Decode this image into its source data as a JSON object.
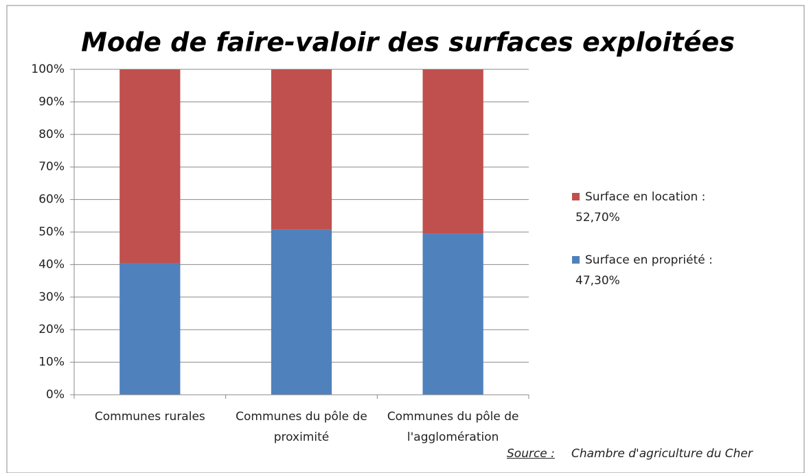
{
  "chart_data": {
    "type": "stacked_bar",
    "title": "Mode de faire-valoir des surfaces exploitées",
    "categories": [
      "Communes rurales",
      "Communes du pôle de proximité",
      "Communes du pôle de l'agglomération"
    ],
    "series": [
      {
        "name": "Surface en propriété : 47,30%",
        "color": "#4f81bd",
        "values": [
          40.5,
          50.7,
          49.5
        ]
      },
      {
        "name": "Surface en location : 52,70%",
        "color": "#c0504d",
        "values": [
          59.5,
          49.3,
          50.5
        ]
      }
    ],
    "ylim": [
      0,
      100
    ],
    "yticks": [
      {
        "value": 0,
        "label": "0%"
      },
      {
        "value": 10,
        "label": "10%"
      },
      {
        "value": 20,
        "label": "20%"
      },
      {
        "value": 30,
        "label": "30%"
      },
      {
        "value": 40,
        "label": "40%"
      },
      {
        "value": 50,
        "label": "50%"
      },
      {
        "value": 60,
        "label": "60%"
      },
      {
        "value": 70,
        "label": "70%"
      },
      {
        "value": 80,
        "label": "80%"
      },
      {
        "value": 90,
        "label": "90%"
      },
      {
        "value": 100,
        "label": "100%"
      }
    ],
    "grid": true,
    "legend": "right",
    "source_label": "Source :",
    "source": "Chambre d'agriculture du Cher"
  }
}
